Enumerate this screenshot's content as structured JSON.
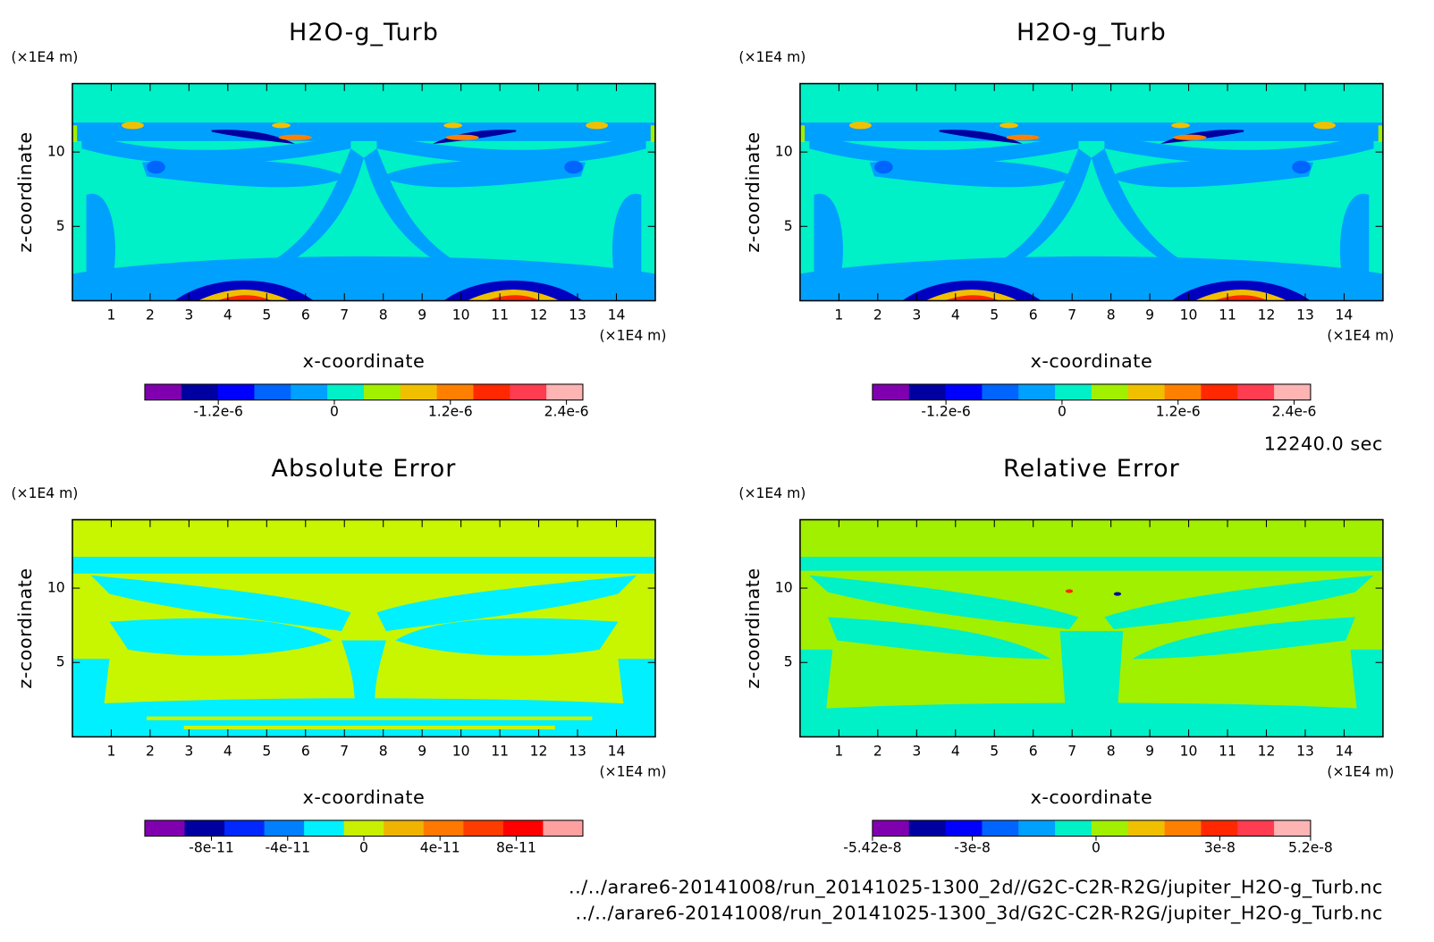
{
  "chart_data": [
    {
      "type": "contour",
      "title": "H2O-g_Turb",
      "xlabel": "x-coordinate",
      "ylabel": "z-coordinate",
      "xunit": "(×1E4 m)",
      "yunit": "(×1E4 m)",
      "xlim": [
        0,
        15
      ],
      "ylim": [
        0,
        14.6
      ],
      "xticks": [
        1,
        2,
        3,
        4,
        5,
        6,
        7,
        8,
        9,
        10,
        11,
        12,
        13,
        14
      ],
      "yticks": [
        5,
        10
      ],
      "background": "#00f0c8",
      "colorbar": {
        "clim": [
          -1.96e-06,
          2.57e-06
        ],
        "colors": [
          "#8000b0",
          "#0000a0",
          "#0000ff",
          "#0064ff",
          "#00a0ff",
          "#00f0c8",
          "#a0f000",
          "#f0c000",
          "#ff8000",
          "#ff2800",
          "#ff3c50",
          "#ffb4b4"
        ],
        "ticks": [
          {
            "value": -1.2e-06,
            "label": "-1.2e-6"
          },
          0,
          {
            "value": 1.2e-06,
            "label": "1.2e-6"
          },
          {
            "value": 2.4e-06,
            "label": "2.4e-6"
          }
        ]
      }
    },
    {
      "type": "contour",
      "title": "H2O-g_Turb",
      "xlabel": "x-coordinate",
      "ylabel": "z-coordinate",
      "xunit": "(×1E4 m)",
      "yunit": "(×1E4 m)",
      "xlim": [
        0,
        15
      ],
      "ylim": [
        0,
        14.6
      ],
      "xticks": [
        1,
        2,
        3,
        4,
        5,
        6,
        7,
        8,
        9,
        10,
        11,
        12,
        13,
        14
      ],
      "yticks": [
        5,
        10
      ],
      "background": "#00f0c8",
      "colorbar": {
        "clim": [
          -1.96e-06,
          2.57e-06
        ],
        "colors": [
          "#8000b0",
          "#0000a0",
          "#0000ff",
          "#0064ff",
          "#00a0ff",
          "#00f0c8",
          "#a0f000",
          "#f0c000",
          "#ff8000",
          "#ff2800",
          "#ff3c50",
          "#ffb4b4"
        ],
        "ticks": [
          {
            "value": -1.2e-06,
            "label": "-1.2e-6"
          },
          0,
          {
            "value": 1.2e-06,
            "label": "1.2e-6"
          },
          {
            "value": 2.4e-06,
            "label": "2.4e-6"
          }
        ]
      }
    },
    {
      "type": "contour",
      "title": "Absolute Error",
      "xlabel": "x-coordinate",
      "ylabel": "z-coordinate",
      "xunit": "(×1E4 m)",
      "yunit": "(×1E4 m)",
      "xlim": [
        0,
        15
      ],
      "ylim": [
        0,
        14.6
      ],
      "xticks": [
        1,
        2,
        3,
        4,
        5,
        6,
        7,
        8,
        9,
        10,
        11,
        12,
        13,
        14
      ],
      "yticks": [
        5,
        10
      ],
      "background": "#c8f500",
      "colorbar": {
        "clim": [
          -1.15e-10,
          1.15e-10
        ],
        "colors": [
          "#8000b0",
          "#0000a0",
          "#0028ff",
          "#0080ff",
          "#00f0ff",
          "#c8f000",
          "#f0b400",
          "#ff7800",
          "#ff3c00",
          "#ff0000",
          "#ffa0a0"
        ],
        "ticks": [
          {
            "value": -8e-11,
            "label": "-8e-11"
          },
          {
            "value": -4e-11,
            "label": "-4e-11"
          },
          0,
          {
            "value": 4e-11,
            "label": "4e-11"
          },
          {
            "value": 8e-11,
            "label": "8e-11"
          }
        ]
      }
    },
    {
      "type": "contour",
      "title": "Relative Error",
      "xlabel": "x-coordinate",
      "ylabel": "z-coordinate",
      "xunit": "(×1E4 m)",
      "yunit": "(×1E4 m)",
      "xlim": [
        0,
        15
      ],
      "ylim": [
        0,
        14.6
      ],
      "xticks": [
        1,
        2,
        3,
        4,
        5,
        6,
        7,
        8,
        9,
        10,
        11,
        12,
        13,
        14
      ],
      "yticks": [
        5,
        10
      ],
      "background": "#a0f000",
      "colorbar": {
        "clim": [
          -5.42e-08,
          5.2e-08
        ],
        "colors": [
          "#8000b0",
          "#0000a0",
          "#0000ff",
          "#0064ff",
          "#00a0ff",
          "#00f0c8",
          "#a0f000",
          "#f0c000",
          "#ff8000",
          "#ff2800",
          "#ff3c50",
          "#ffb4b4"
        ],
        "ticks": [
          {
            "value": -5.42e-08,
            "label": "-5.42e-8"
          },
          {
            "value": -3e-08,
            "label": "-3e-8"
          },
          0,
          {
            "value": 3e-08,
            "label": "3e-8"
          },
          {
            "value": 5.2e-08,
            "label": "5.2e-8"
          }
        ]
      }
    }
  ],
  "time": "12240.0 sec",
  "files": [
    "../../arare6-20141008/run_20141025-1300_2d//G2C-C2R-R2G/jupiter_H2O-g_Turb.nc",
    "../../arare6-20141008/run_20141025-1300_3d/G2C-C2R-R2G/jupiter_H2O-g_Turb.nc"
  ]
}
